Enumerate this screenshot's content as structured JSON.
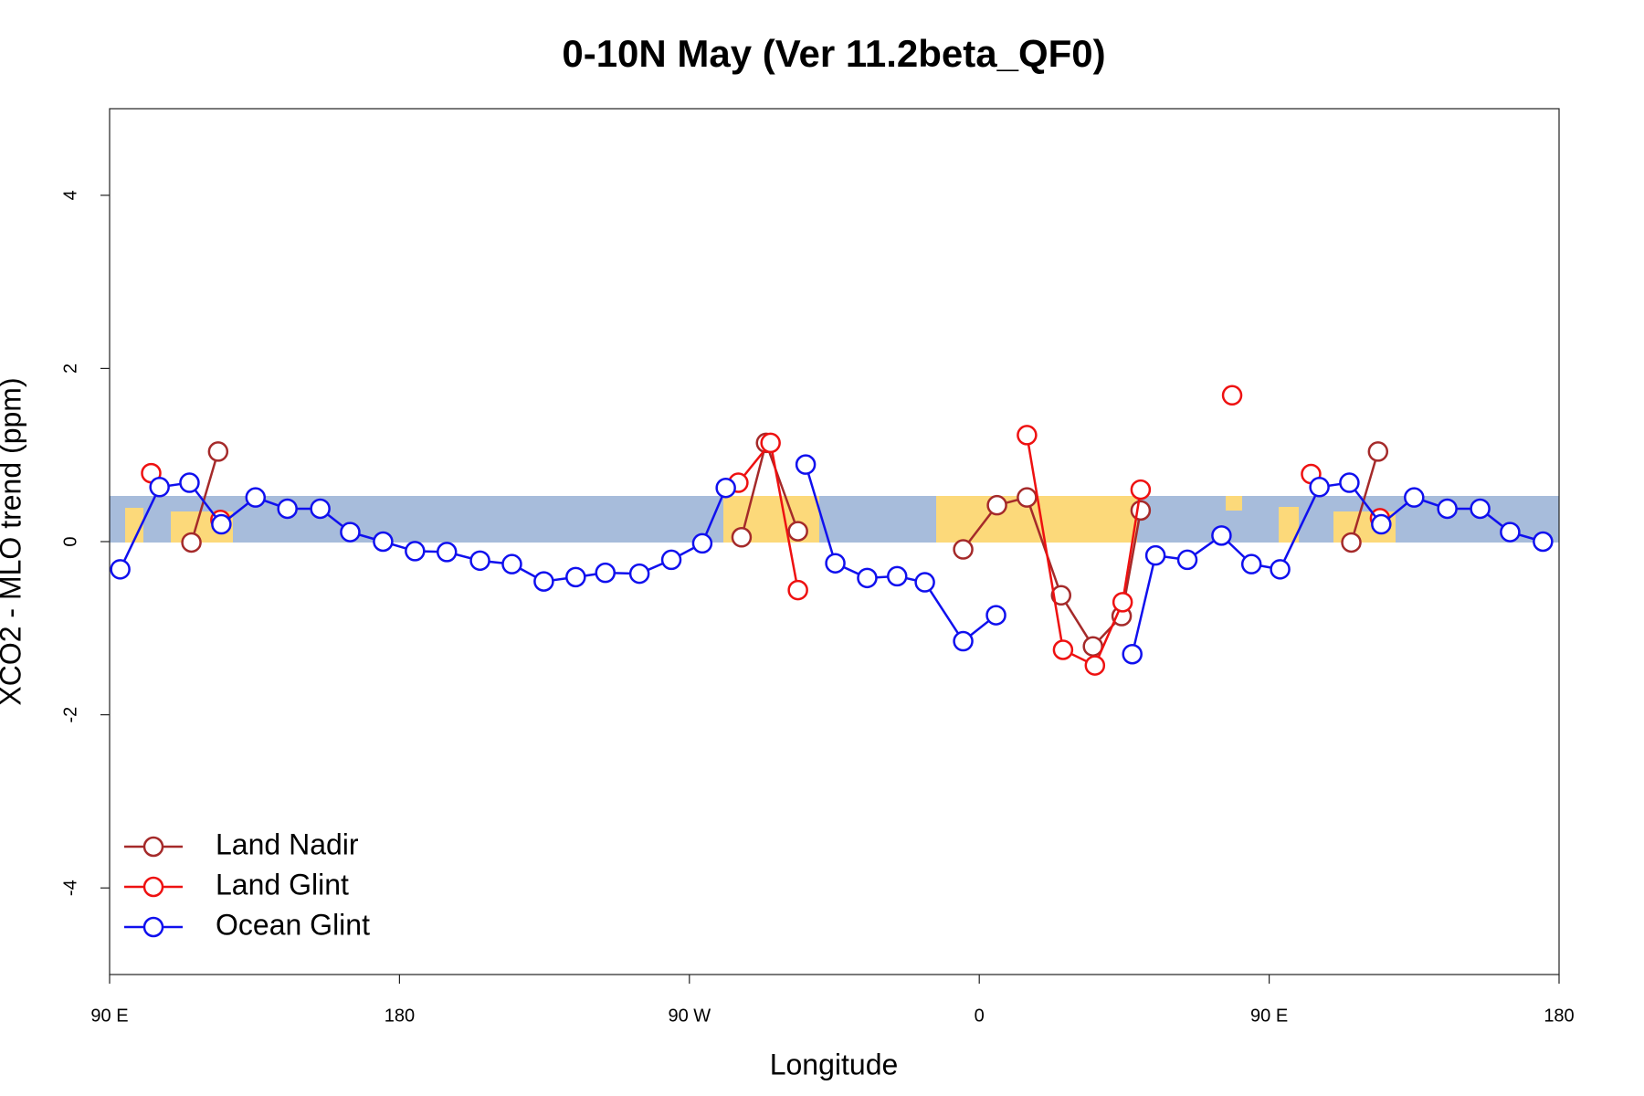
{
  "chart_data": {
    "type": "line",
    "title": "0-10N May (Ver 11.2beta_QF0)",
    "x_label": "Longitude",
    "y_label": "XCO2 - MLO trend (ppm)",
    "xlim": [
      90,
      540
    ],
    "ylim": [
      -5,
      5
    ],
    "xticks": [
      {
        "value": 90,
        "label": "90 E"
      },
      {
        "value": 180,
        "label": "180"
      },
      {
        "value": 270,
        "label": "90 W"
      },
      {
        "value": 360,
        "label": "0"
      },
      {
        "value": 450,
        "label": "90 E"
      },
      {
        "value": 540,
        "label": "180"
      }
    ],
    "yticks": [
      -4,
      -2,
      0,
      2,
      4
    ],
    "legend": "bottomleft",
    "series": [
      {
        "name": "Land Nadir",
        "color": "#a52a2a",
        "x": [
          115.4,
          123.7,
          null,
          286.2,
          293.8,
          303.7,
          null,
          355.0,
          365.5,
          374.8,
          385.4,
          395.3,
          404.2,
          410.1,
          null,
          475.5,
          483.8
        ],
        "values": [
          -0.01,
          1.04,
          null,
          0.05,
          1.14,
          0.12,
          null,
          -0.09,
          0.42,
          0.51,
          -0.62,
          -1.21,
          -0.86,
          0.36,
          null,
          -0.01,
          1.04
        ]
      },
      {
        "name": "Land Glint",
        "color": "#ee1111",
        "x": [
          102.9,
          null,
          124.4,
          null,
          285.2,
          295.2,
          303.7,
          null,
          374.8,
          386.0,
          395.9,
          404.5,
          410.1,
          null,
          438.5,
          null,
          463.0,
          null,
          484.4
        ],
        "values": [
          0.79,
          null,
          0.25,
          null,
          0.68,
          1.14,
          -0.56,
          null,
          1.23,
          -1.25,
          -1.43,
          -0.7,
          0.6,
          null,
          1.69,
          null,
          0.78,
          null,
          0.27
        ]
      },
      {
        "name": "Ocean Glint",
        "color": "#1010ee",
        "x": [
          93.3,
          105.5,
          114.8,
          124.7,
          135.3,
          145.2,
          155.4,
          164.7,
          174.9,
          184.8,
          194.7,
          205.0,
          214.9,
          224.8,
          234.7,
          243.9,
          254.5,
          264.4,
          274.0,
          281.3,
          null,
          306.1,
          315.3,
          325.2,
          334.5,
          343.1,
          355.0,
          365.2,
          null,
          407.5,
          414.7,
          424.6,
          435.2,
          444.5,
          453.4,
          465.6,
          474.9,
          484.8,
          495.0,
          505.3,
          515.5,
          524.8,
          535.0
        ],
        "values": [
          -0.32,
          0.63,
          0.68,
          0.2,
          0.51,
          0.38,
          0.38,
          0.11,
          0.0,
          -0.11,
          -0.12,
          -0.22,
          -0.26,
          -0.46,
          -0.41,
          -0.36,
          -0.37,
          -0.21,
          -0.02,
          0.62,
          null,
          0.89,
          -0.25,
          -0.42,
          -0.4,
          -0.47,
          -1.15,
          -0.85,
          null,
          -1.3,
          -0.16,
          -0.21,
          0.07,
          -0.26,
          -0.32,
          0.63,
          0.68,
          0.2,
          0.51,
          0.38,
          0.38,
          0.11,
          0.0
        ]
      }
    ]
  }
}
